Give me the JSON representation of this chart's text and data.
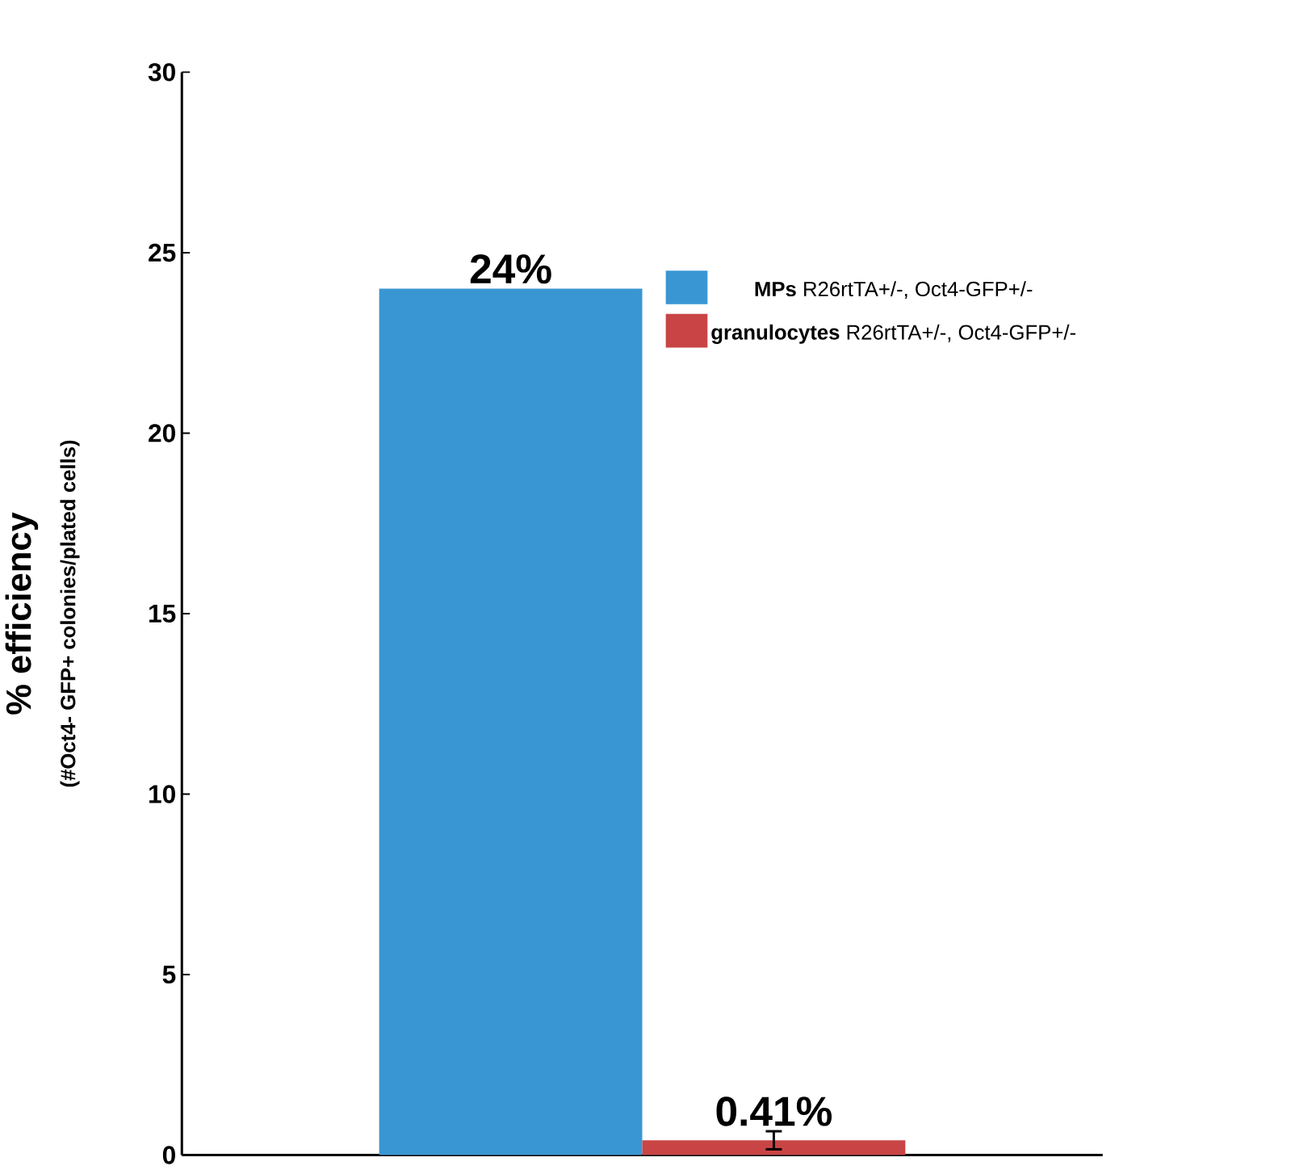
{
  "chart_data": {
    "type": "bar",
    "ylabel": "% efficiency",
    "annotations": [
      "(#Oct4- GFP+ colonies/plated cells)"
    ],
    "categories": [
      null
    ],
    "series": [
      {
        "name": "**MPs** R26rtTA+/-, Oct4-GFP+/-",
        "color": "#3a96d2",
        "values": [
          24
        ],
        "value_labels": [
          "24%"
        ]
      },
      {
        "name": "**granulocytes** R26rtTA+/-, Oct4-GFP+/-",
        "color": "#c94545",
        "values": [
          0.41
        ],
        "errors": [
          0.25
        ],
        "value_labels": [
          "0.41%"
        ]
      }
    ],
    "ylim": [
      0,
      30
    ],
    "yticks": [
      0,
      5,
      10,
      15,
      20,
      25,
      30
    ],
    "legend": "right"
  }
}
